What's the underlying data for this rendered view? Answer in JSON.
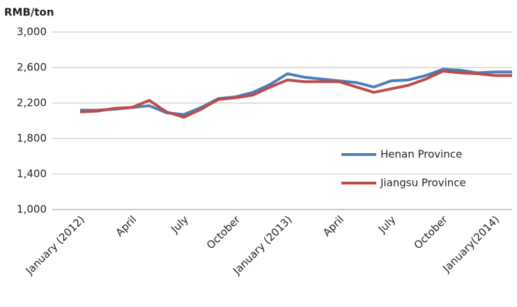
{
  "chart_data": {
    "type": "line",
    "y_label": "RMB/ton",
    "categories": [
      "January (2012)",
      null,
      null,
      "April",
      null,
      null,
      "July",
      null,
      null,
      "October",
      null,
      null,
      "January (2013)",
      null,
      null,
      "April",
      null,
      null,
      "July",
      null,
      null,
      "October",
      null,
      null,
      "January(2014)",
      null
    ],
    "series": [
      {
        "name": "Henan Province",
        "color": "#4a7ebb",
        "values": [
          2120,
          2120,
          2130,
          2150,
          2170,
          2090,
          2070,
          2150,
          2250,
          2270,
          2320,
          2410,
          2530,
          2490,
          2470,
          2450,
          2430,
          2380,
          2450,
          2460,
          2510,
          2580,
          2570,
          2540,
          2550,
          2550
        ]
      },
      {
        "name": "Jiangsu Province",
        "color": "#be4b48",
        "values": [
          2100,
          2110,
          2140,
          2150,
          2230,
          2100,
          2040,
          2130,
          2240,
          2260,
          2290,
          2380,
          2460,
          2440,
          2440,
          2440,
          2380,
          2320,
          2360,
          2400,
          2470,
          2560,
          2540,
          2530,
          2510,
          2510
        ]
      }
    ],
    "ylim": [
      1000,
      3000
    ],
    "yticks": [
      {
        "value": 1000,
        "label": "1,000"
      },
      {
        "value": 1400,
        "label": "1,400"
      },
      {
        "value": 1800,
        "label": "1,800"
      },
      {
        "value": 2200,
        "label": "2,200"
      },
      {
        "value": 2600,
        "label": "2,600"
      },
      {
        "value": 3000,
        "label": "3,000"
      }
    ],
    "grid": true,
    "legend": "right"
  }
}
